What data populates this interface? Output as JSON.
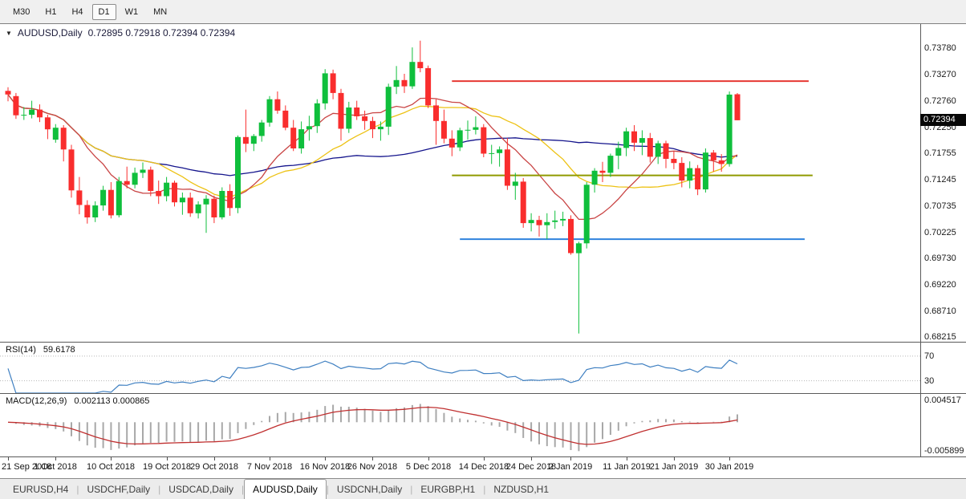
{
  "toolbar": {
    "timeframes": [
      {
        "label": "M30",
        "active": false
      },
      {
        "label": "H1",
        "active": false
      },
      {
        "label": "H4",
        "active": false
      },
      {
        "label": "D1",
        "active": true
      },
      {
        "label": "W1",
        "active": false
      },
      {
        "label": "MN",
        "active": false
      }
    ]
  },
  "chart": {
    "dropdown_icon": "▼",
    "title": "AUDUSD,Daily",
    "ohlc": "0.72895 0.72918 0.72394 0.72394",
    "current_price": "0.72394",
    "price_axis_labels": [
      "0.73780",
      "0.73270",
      "0.72760",
      "0.72250",
      "0.71755",
      "0.71245",
      "0.70735",
      "0.70225",
      "0.69730",
      "0.69220",
      "0.68710",
      "0.68215"
    ]
  },
  "chart_data": {
    "type": "candlestick",
    "symbol": "AUDUSD",
    "period": "Daily",
    "price_max": 0.7425,
    "price_min": 0.6812,
    "colors": {
      "up": "#0fbf3c",
      "down": "#f92d2d"
    },
    "moving_averages": [
      {
        "name": "slow",
        "period": 45,
        "color": "#14148c"
      },
      {
        "name": "medium",
        "period": 20,
        "color": "#edc214"
      },
      {
        "name": "fast",
        "period": 10,
        "color": "#c94545"
      }
    ],
    "hlines": [
      {
        "name": "resistance-line",
        "price": 0.7315,
        "color": "#e63832",
        "width": 2,
        "from_index": 56,
        "to_index": 101
      },
      {
        "name": "mid-line",
        "price": 0.7133,
        "color": "#8f9a00",
        "width": 2,
        "from_index": 56,
        "to_index": 101.5
      },
      {
        "name": "support-line",
        "price": 0.701,
        "color": "#2f82dd",
        "width": 2,
        "from_index": 57,
        "to_index": 100.5
      }
    ],
    "x_labels": [
      {
        "label": "21 Sep 2018",
        "index": 0
      },
      {
        "label": "1 Oct 2018",
        "index": 6
      },
      {
        "label": "10 Oct 2018",
        "index": 13
      },
      {
        "label": "19 Oct 2018",
        "index": 20
      },
      {
        "label": "29 Oct 2018",
        "index": 26
      },
      {
        "label": "7 Nov 2018",
        "index": 33
      },
      {
        "label": "16 Nov 2018",
        "index": 40
      },
      {
        "label": "26 Nov 2018",
        "index": 46
      },
      {
        "label": "5 Dec 2018",
        "index": 53
      },
      {
        "label": "14 Dec 2018",
        "index": 60
      },
      {
        "label": "24 Dec 2018",
        "index": 66
      },
      {
        "label": "2 Jan 2019",
        "index": 71
      },
      {
        "label": "11 Jan 2019",
        "index": 78
      },
      {
        "label": "21 Jan 2019",
        "index": 84
      },
      {
        "label": "30 Jan 2019",
        "index": 91
      }
    ],
    "candles": [
      [
        0.7296,
        0.7303,
        0.7276,
        0.7289
      ],
      [
        0.7286,
        0.7292,
        0.7242,
        0.7249
      ],
      [
        0.7249,
        0.7265,
        0.724,
        0.725
      ],
      [
        0.725,
        0.7277,
        0.7243,
        0.726
      ],
      [
        0.726,
        0.727,
        0.7236,
        0.7245
      ],
      [
        0.7245,
        0.725,
        0.7203,
        0.7222
      ],
      [
        0.7202,
        0.7232,
        0.7196,
        0.7225
      ],
      [
        0.7225,
        0.723,
        0.716,
        0.7183
      ],
      [
        0.7183,
        0.7192,
        0.709,
        0.7104
      ],
      [
        0.7104,
        0.713,
        0.7058,
        0.7076
      ],
      [
        0.7076,
        0.7085,
        0.704,
        0.7052
      ],
      [
        0.7052,
        0.7083,
        0.7043,
        0.7075
      ],
      [
        0.7075,
        0.7113,
        0.7065,
        0.7105
      ],
      [
        0.7105,
        0.712,
        0.705,
        0.7056
      ],
      [
        0.7056,
        0.713,
        0.7052,
        0.7122
      ],
      [
        0.7122,
        0.715,
        0.7108,
        0.7115
      ],
      [
        0.7115,
        0.7148,
        0.7108,
        0.7138
      ],
      [
        0.7138,
        0.7158,
        0.7128,
        0.7144
      ],
      [
        0.7144,
        0.715,
        0.7093,
        0.7103
      ],
      [
        0.7103,
        0.7123,
        0.7078,
        0.7093
      ],
      [
        0.7093,
        0.713,
        0.7083,
        0.7119
      ],
      [
        0.7119,
        0.7123,
        0.7073,
        0.7081
      ],
      [
        0.7081,
        0.71,
        0.7057,
        0.709
      ],
      [
        0.709,
        0.71,
        0.7053,
        0.706
      ],
      [
        0.706,
        0.7083,
        0.705,
        0.7077
      ],
      [
        0.7077,
        0.7095,
        0.7022,
        0.7088
      ],
      [
        0.7088,
        0.7094,
        0.7041,
        0.7052
      ],
      [
        0.7052,
        0.711,
        0.7048,
        0.7103
      ],
      [
        0.7103,
        0.7116,
        0.7055,
        0.707
      ],
      [
        0.707,
        0.721,
        0.706,
        0.7207
      ],
      [
        0.7207,
        0.726,
        0.7178,
        0.7194
      ],
      [
        0.7194,
        0.7213,
        0.718,
        0.7209
      ],
      [
        0.7209,
        0.724,
        0.7198,
        0.7235
      ],
      [
        0.7235,
        0.7286,
        0.7227,
        0.728
      ],
      [
        0.728,
        0.7295,
        0.7252,
        0.7258
      ],
      [
        0.7258,
        0.7268,
        0.722,
        0.7225
      ],
      [
        0.7225,
        0.724,
        0.718,
        0.7185
      ],
      [
        0.7185,
        0.7237,
        0.7175,
        0.7222
      ],
      [
        0.7222,
        0.7248,
        0.72,
        0.7228
      ],
      [
        0.7228,
        0.728,
        0.7215,
        0.7272
      ],
      [
        0.7272,
        0.7338,
        0.726,
        0.733
      ],
      [
        0.733,
        0.7337,
        0.728,
        0.7292
      ],
      [
        0.7292,
        0.73,
        0.72,
        0.7223
      ],
      [
        0.7223,
        0.7275,
        0.7215,
        0.7264
      ],
      [
        0.7264,
        0.7277,
        0.724,
        0.7247
      ],
      [
        0.7247,
        0.7258,
        0.7221,
        0.7238
      ],
      [
        0.7238,
        0.7246,
        0.7205,
        0.7222
      ],
      [
        0.7222,
        0.7237,
        0.72,
        0.7227
      ],
      [
        0.7227,
        0.731,
        0.7211,
        0.7304
      ],
      [
        0.7304,
        0.7344,
        0.729,
        0.7317
      ],
      [
        0.7317,
        0.7329,
        0.7292,
        0.7305
      ],
      [
        0.7305,
        0.738,
        0.73,
        0.7352
      ],
      [
        0.7352,
        0.7393,
        0.7332,
        0.734
      ],
      [
        0.734,
        0.7345,
        0.7263,
        0.7268
      ],
      [
        0.7268,
        0.728,
        0.7192,
        0.7238
      ],
      [
        0.7238,
        0.726,
        0.7195,
        0.7204
      ],
      [
        0.7204,
        0.722,
        0.717,
        0.7187
      ],
      [
        0.7187,
        0.7225,
        0.718,
        0.722
      ],
      [
        0.722,
        0.7239,
        0.7202,
        0.7221
      ],
      [
        0.7221,
        0.7247,
        0.7212,
        0.7226
      ],
      [
        0.7226,
        0.7232,
        0.7168,
        0.7175
      ],
      [
        0.7175,
        0.7192,
        0.7155,
        0.7176
      ],
      [
        0.7176,
        0.7189,
        0.715,
        0.7183
      ],
      [
        0.7183,
        0.7205,
        0.7105,
        0.7113
      ],
      [
        0.7113,
        0.7138,
        0.7086,
        0.7121
      ],
      [
        0.7121,
        0.7128,
        0.7032,
        0.7041
      ],
      [
        0.7041,
        0.706,
        0.7025,
        0.7047
      ],
      [
        0.7047,
        0.7055,
        0.7015,
        0.7037
      ],
      [
        0.7037,
        0.706,
        0.701,
        0.7043
      ],
      [
        0.7043,
        0.7065,
        0.703,
        0.7046
      ],
      [
        0.7046,
        0.7063,
        0.7035,
        0.7049
      ],
      [
        0.7049,
        0.7056,
        0.698,
        0.6983
      ],
      [
        0.6983,
        0.7005,
        0.6828,
        0.7002
      ],
      [
        0.7002,
        0.712,
        0.6992,
        0.7115
      ],
      [
        0.7115,
        0.7147,
        0.71,
        0.7142
      ],
      [
        0.7142,
        0.7159,
        0.712,
        0.7138
      ],
      [
        0.7138,
        0.7175,
        0.713,
        0.7171
      ],
      [
        0.7171,
        0.7198,
        0.7145,
        0.7186
      ],
      [
        0.7186,
        0.7225,
        0.717,
        0.7218
      ],
      [
        0.7218,
        0.723,
        0.718,
        0.7196
      ],
      [
        0.7196,
        0.722,
        0.7172,
        0.7205
      ],
      [
        0.7205,
        0.7215,
        0.7158,
        0.7169
      ],
      [
        0.7169,
        0.72,
        0.7155,
        0.7195
      ],
      [
        0.7195,
        0.72,
        0.7147,
        0.7165
      ],
      [
        0.7165,
        0.718,
        0.7145,
        0.7157
      ],
      [
        0.7157,
        0.7168,
        0.711,
        0.7123
      ],
      [
        0.7123,
        0.716,
        0.7108,
        0.7147
      ],
      [
        0.7147,
        0.7153,
        0.7095,
        0.7106
      ],
      [
        0.7106,
        0.7185,
        0.71,
        0.7177
      ],
      [
        0.7177,
        0.7182,
        0.714,
        0.7162
      ],
      [
        0.7162,
        0.7174,
        0.714,
        0.7155
      ],
      [
        0.7155,
        0.7295,
        0.715,
        0.7289
      ],
      [
        0.72895,
        0.72918,
        0.72394,
        0.72394
      ]
    ]
  },
  "rsi": {
    "label": "RSI(14)",
    "value": "59.6178",
    "period": 14,
    "line_color": "#3e7fc1",
    "levels": [
      {
        "label": "70",
        "value": 70
      },
      {
        "label": "30",
        "value": 30
      }
    ],
    "scale_max": 92,
    "scale_min": 10
  },
  "macd": {
    "label": "MACD(12,26,9)",
    "values": "0.002113 0.000865",
    "fast": 12,
    "slow": 26,
    "signal": 9,
    "histogram_color": "#a8a8a8",
    "signal_color": "#c03030",
    "axis_labels": [
      {
        "label": "0.004517",
        "value": 0.004517
      },
      {
        "label": "-0.005899",
        "value": -0.005899
      }
    ],
    "scale_max": 0.0058,
    "scale_min": -0.007
  },
  "tabs": [
    {
      "label": "EURUSD,H4",
      "active": false
    },
    {
      "label": "USDCHF,Daily",
      "active": false
    },
    {
      "label": "USDCAD,Daily",
      "active": false
    },
    {
      "label": "AUDUSD,Daily",
      "active": true
    },
    {
      "label": "USDCNH,Daily",
      "active": false
    },
    {
      "label": "EURGBP,H1",
      "active": false
    },
    {
      "label": "NZDUSD,H1",
      "active": false
    }
  ]
}
